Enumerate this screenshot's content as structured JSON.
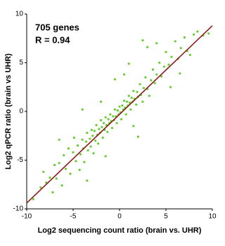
{
  "chart_data": {
    "type": "scatter",
    "annotations": [
      "705 genes",
      "R = 0.94"
    ],
    "x_label": "Log2 sequencing count ratio (brain vs. UHR)",
    "y_label": "Log2 qPCR ratio (brain vs UHR)",
    "xlim": [
      -10,
      10
    ],
    "ylim": [
      -10,
      10
    ],
    "xticks": [
      -10,
      -5,
      0,
      5,
      10
    ],
    "yticks": [
      -10,
      -5,
      0,
      5,
      10
    ],
    "point_color": "#66cc33",
    "fit_line": {
      "color": "#8b1a1a",
      "x": [
        -10,
        10
      ],
      "y": [
        -9.4,
        8.8
      ]
    },
    "x": [
      -9.3,
      -8.5,
      -8.2,
      -7.9,
      -7.5,
      -7.0,
      -6.8,
      -6.5,
      -6.2,
      -6.0,
      -5.8,
      -5.5,
      -5.3,
      -5.0,
      -4.9,
      -4.7,
      -4.5,
      -4.3,
      -4.2,
      -4.0,
      -3.9,
      -3.8,
      -3.6,
      -3.5,
      -3.4,
      -3.2,
      -3.1,
      -3.0,
      -2.9,
      -2.8,
      -2.7,
      -2.6,
      -2.5,
      -2.4,
      -2.3,
      -2.2,
      -2.1,
      -2.0,
      -1.9,
      -1.8,
      -1.7,
      -1.6,
      -1.5,
      -1.4,
      -1.3,
      -1.2,
      -1.1,
      -1.0,
      -0.9,
      -0.8,
      -0.7,
      -0.6,
      -0.5,
      -0.4,
      -0.3,
      -0.2,
      -0.1,
      0.0,
      0.1,
      0.2,
      0.3,
      0.4,
      0.5,
      0.6,
      0.7,
      0.8,
      0.9,
      1.0,
      1.1,
      1.2,
      1.3,
      1.4,
      1.5,
      1.6,
      1.8,
      1.9,
      2.0,
      2.2,
      2.3,
      2.5,
      2.6,
      2.8,
      3.0,
      3.2,
      3.4,
      3.6,
      3.8,
      4.0,
      4.3,
      4.5,
      4.8,
      5.0,
      5.3,
      5.6,
      6.0,
      6.3,
      6.6,
      7.0,
      7.3,
      7.6,
      8.0,
      8.4,
      9.0,
      9.6,
      3.0,
      2.5,
      1.0,
      -0.5,
      0.5,
      2.0,
      -1.5,
      -3.5,
      -4.0,
      -6.5,
      5.5,
      4.0,
      -7.2,
      6.5,
      -2.0,
      1.5
    ],
    "y": [
      -9.0,
      -7.8,
      -6.2,
      -7.3,
      -6.8,
      -5.5,
      -6.9,
      -5.3,
      -7.6,
      -4.5,
      -5.9,
      -3.8,
      -6.4,
      -4.2,
      -2.7,
      -5.1,
      -3.5,
      -6.0,
      -4.4,
      -2.9,
      -3.8,
      -5.2,
      -3.1,
      -2.2,
      -4.0,
      -2.8,
      -3.6,
      -1.9,
      -2.5,
      -4.3,
      -2.0,
      -3.0,
      -1.4,
      -2.4,
      -3.3,
      -1.8,
      -2.2,
      -0.9,
      -1.6,
      -2.7,
      -1.2,
      -1.9,
      -0.6,
      -1.4,
      -2.1,
      -0.8,
      -1.2,
      -0.3,
      -1.0,
      -1.7,
      -0.5,
      -0.9,
      0.2,
      -0.5,
      -1.2,
      0.1,
      -0.3,
      0.5,
      -0.1,
      -0.8,
      0.6,
      0.2,
      1.1,
      0.4,
      -0.3,
      1.0,
      0.6,
      1.6,
      0.9,
      0.2,
      1.4,
      1.0,
      2.1,
      1.3,
      0.7,
      2.0,
      1.5,
      2.8,
      1.7,
      1.0,
      2.4,
      3.5,
      2.3,
      1.6,
      3.2,
      4.3,
      2.9,
      3.8,
      5.0,
      3.6,
      4.6,
      6.1,
      4.8,
      5.6,
      7.2,
      5.4,
      6.5,
      7.6,
      6.2,
      5.8,
      7.9,
      8.2,
      7.8,
      8.0,
      6.6,
      7.3,
      4.9,
      3.3,
      3.8,
      -2.6,
      -4.6,
      -7.1,
      0.2,
      -2.9,
      2.5,
      7.0,
      -8.3,
      3.9,
      1.0,
      -1.5
    ]
  }
}
